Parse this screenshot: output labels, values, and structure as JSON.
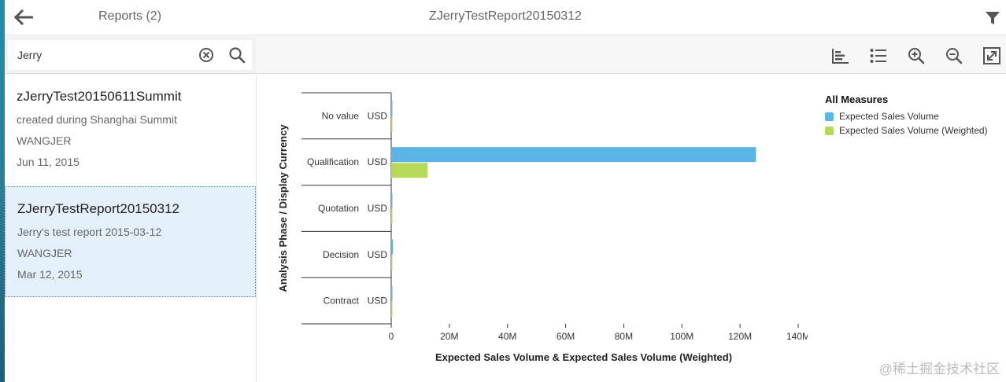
{
  "header": {
    "reports_label": "Reports (2)",
    "report_title": "ZJerryTestReport20150312"
  },
  "search": {
    "value": "Jerry"
  },
  "reports": [
    {
      "title": "zJerryTest20150611Summit",
      "description": "created during Shanghai Summit",
      "owner": "WANGJER",
      "date": "Jun 11, 2015",
      "selected": false
    },
    {
      "title": "ZJerryTestReport20150312",
      "description": "Jerry's test report 2015-03-12",
      "owner": "WANGJER",
      "date": "Mar 12, 2015",
      "selected": true
    }
  ],
  "toolbar": {
    "icons": [
      "bar-chart-icon",
      "list-icon",
      "zoom-in-icon",
      "zoom-out-icon",
      "fullscreen-icon"
    ]
  },
  "colors": {
    "series1": "#5ab4e5",
    "series2": "#b6d957",
    "accent": "#1f8fa8"
  },
  "chart_data": {
    "type": "bar",
    "orientation": "horizontal",
    "categories": [
      "No value",
      "Qualification",
      "Quotation",
      "Decision",
      "Contract"
    ],
    "category_unit": "USD",
    "series": [
      {
        "name": "Expected Sales Volume",
        "values": [
          0.3,
          125.5,
          0.4,
          0.6,
          0.3
        ]
      },
      {
        "name": "Expected Sales Volume (Weighted)",
        "values": [
          0.05,
          12.5,
          0.1,
          0.2,
          0.3
        ]
      }
    ],
    "xticks": [
      "0",
      "20M",
      "40M",
      "60M",
      "80M",
      "100M",
      "120M",
      "140M"
    ],
    "xlim": [
      0,
      140
    ],
    "xlabel": "Expected Sales Volume & Expected Sales Volume (Weighted)",
    "ylabel": "Analysis Phase / Display Currency",
    "legend_title": "All Measures",
    "legend_position": "top-right",
    "grid": false
  },
  "watermark": "@稀土掘金技术社区"
}
